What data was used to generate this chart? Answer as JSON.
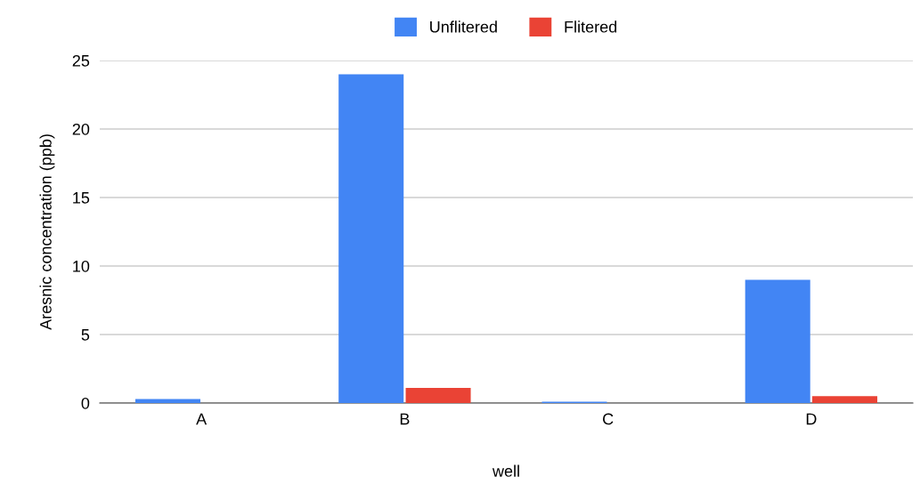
{
  "chart_data": {
    "type": "bar",
    "xlabel": "well",
    "ylabel": "Aresnic concentration (ppb)",
    "categories": [
      "A",
      "B",
      "C",
      "D"
    ],
    "series": [
      {
        "name": "Unflitered",
        "color": "#4285f4",
        "values": [
          0.3,
          24.0,
          0.1,
          9.0
        ]
      },
      {
        "name": "Flitered",
        "color": "#ea4335",
        "values": [
          0,
          1.1,
          0,
          0.5
        ]
      }
    ],
    "ylim": [
      0,
      25
    ],
    "yticks": [
      0,
      5,
      10,
      15,
      20,
      25
    ],
    "grid": "y",
    "legend": "top"
  }
}
